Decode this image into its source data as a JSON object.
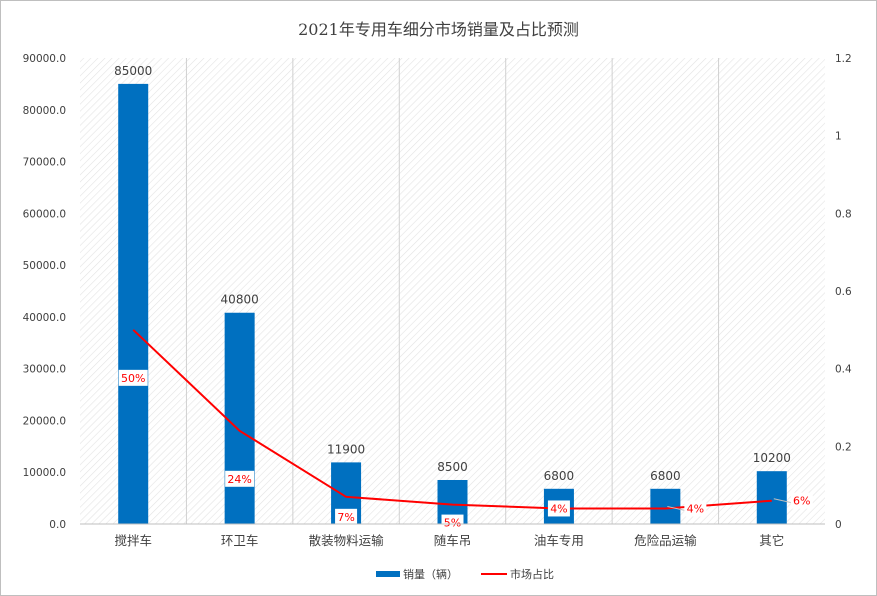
{
  "chart_data": {
    "type": "bar",
    "title": "2021年专用车细分市场销量及占比预测",
    "categories": [
      "搅拌车",
      "环卫车",
      "散装物料运输",
      "随车吊",
      "油车专用",
      "危险品运输",
      "其它"
    ],
    "series": [
      {
        "name": "销量（辆）",
        "type": "bar",
        "axis": "left",
        "color": "#0070c0",
        "values": [
          85000,
          40800,
          11900,
          8500,
          6800,
          6800,
          10200
        ],
        "data_labels": [
          "85000",
          "40800",
          "11900",
          "8500",
          "6800",
          "6800",
          "10200"
        ]
      },
      {
        "name": "市场占比",
        "type": "line",
        "axis": "right",
        "color": "#ff0000",
        "values": [
          0.5,
          0.24,
          0.07,
          0.05,
          0.04,
          0.04,
          0.06
        ],
        "data_labels": [
          "50%",
          "24%",
          "7%",
          "5%",
          "4%",
          "4%",
          "6%"
        ]
      }
    ],
    "y_left": {
      "range": [
        0,
        90000
      ],
      "ticks": [
        0,
        10000,
        20000,
        30000,
        40000,
        50000,
        60000,
        70000,
        80000,
        90000
      ],
      "tick_labels": [
        "0.0",
        "10000.0",
        "20000.0",
        "30000.0",
        "40000.0",
        "50000.0",
        "60000.0",
        "70000.0",
        "80000.0",
        "90000.0"
      ]
    },
    "y_right": {
      "range": [
        0,
        1.2
      ],
      "ticks": [
        0,
        0.2,
        0.4,
        0.6,
        0.8,
        1,
        1.2
      ],
      "tick_labels": [
        "0",
        "0.2",
        "0.4",
        "0.6",
        "0.8",
        "1",
        "1.2"
      ]
    },
    "grid": "vertical category dividers over hatched plot background",
    "legend_position": "bottom",
    "colors": {
      "bar": "#0070c0",
      "line": "#ff0000",
      "hatch": "#d9d9d9"
    }
  }
}
